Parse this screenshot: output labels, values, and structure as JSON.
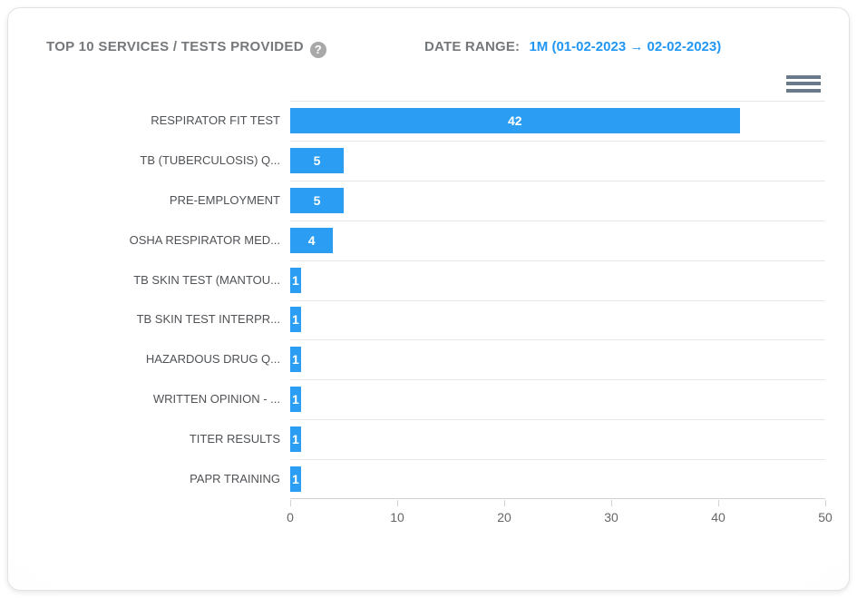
{
  "panel": {
    "title": "TOP 10 SERVICES / TESTS PROVIDED",
    "help_icon_glyph": "?",
    "date_range_label": "DATE RANGE:",
    "date_range_value": "1M (01-02-2023 → 02-02-2023)",
    "menu_icon": "hamburger-menu-icon"
  },
  "colors": {
    "bar": "#2b9ef4",
    "accent_blue": "#2196f3",
    "title_gray": "#75787b",
    "category_label": "#4f5256",
    "axis_label": "#666666",
    "grid_line": "#e7e7e7",
    "axis_line": "#cfd4d9",
    "value_label": "#ffffff"
  },
  "chart_data": {
    "type": "bar",
    "orientation": "horizontal",
    "title": "TOP 10 SERVICES / TESTS PROVIDED",
    "categories": [
      "RESPIRATOR FIT TEST",
      "TB (TUBERCULOSIS) Q...",
      "PRE-EMPLOYMENT",
      "OSHA RESPIRATOR MED...",
      "TB SKIN TEST (MANTOU...",
      "TB SKIN TEST INTERPR...",
      "HAZARDOUS DRUG Q...",
      "WRITTEN OPINION - ...",
      "TITER RESULTS",
      "PAPR TRAINING"
    ],
    "values": [
      42,
      5,
      5,
      4,
      1,
      1,
      1,
      1,
      1,
      1
    ],
    "xlabel": "",
    "ylabel": "",
    "xlim": [
      0,
      50
    ],
    "x_ticks": [
      0,
      10,
      20,
      30,
      40,
      50
    ],
    "grid": true,
    "legend": "none",
    "data_labels": "inside-center-white"
  }
}
